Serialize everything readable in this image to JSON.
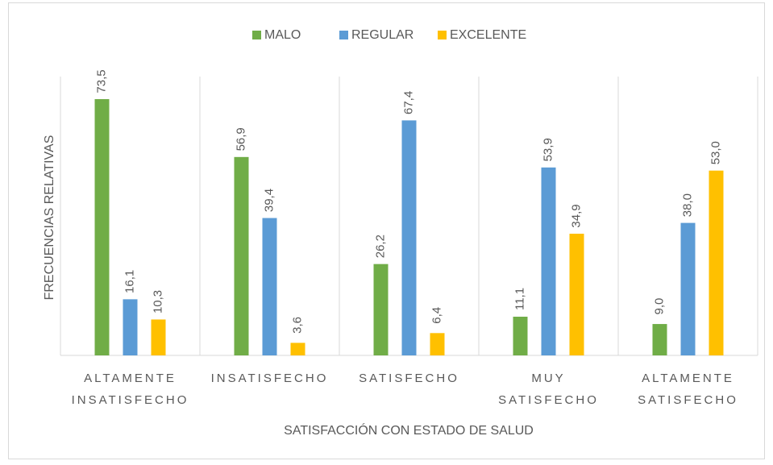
{
  "chart_data": {
    "type": "bar",
    "x_label": "SATISFACCIÓN CON ESTADO DE SALUD",
    "y_label": "FRECUENCIAS RELATIVAS",
    "categories": [
      "ALTAMENTE INSATISFECHO",
      "INSATISFECHO",
      "SATISFECHO",
      "MUY SATISFECHO",
      "ALTAMENTE SATISFECHO"
    ],
    "series": [
      {
        "name": "MALO",
        "color": "#70ad47",
        "values": [
          73.5,
          56.9,
          26.2,
          11.1,
          9.0
        ],
        "value_labels": [
          "73,5",
          "56,9",
          "26,2",
          "11,1",
          "9,0"
        ]
      },
      {
        "name": "REGULAR",
        "color": "#5b9bd5",
        "values": [
          16.1,
          39.4,
          67.4,
          53.9,
          38.0
        ],
        "value_labels": [
          "16,1",
          "39,4",
          "67,4",
          "53,9",
          "38,0"
        ]
      },
      {
        "name": "EXCELENTE",
        "color": "#ffc000",
        "values": [
          10.3,
          3.6,
          6.4,
          34.9,
          53.0
        ],
        "value_labels": [
          "10,3",
          "3,6",
          "6,4",
          "34,9",
          "53,0"
        ]
      }
    ],
    "legend": "top",
    "grid": "vertical"
  }
}
